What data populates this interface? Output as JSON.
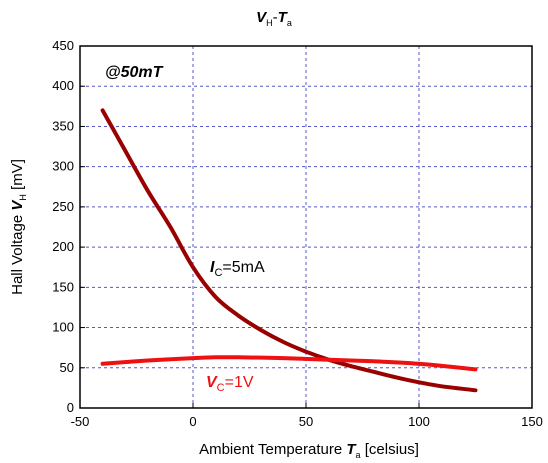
{
  "chart_data": {
    "type": "line",
    "title": {
      "main": "V",
      "sub": "H",
      "sep": "-",
      "main2": "T",
      "sub2": "a"
    },
    "xlabel": {
      "prefix": "Ambient Temperature ",
      "sym": "T",
      "sub": "a",
      "suffix": " [celsius]"
    },
    "ylabel": {
      "prefix": "Hall Voltage ",
      "sym": "V",
      "sub": "H",
      "suffix": " [mV]"
    },
    "xlim": [
      -50,
      150
    ],
    "ylim": [
      0,
      450
    ],
    "xticks": [
      -50,
      0,
      50,
      100,
      150
    ],
    "yticks": [
      0,
      50,
      100,
      150,
      200,
      250,
      300,
      350,
      400,
      450
    ],
    "grid": true,
    "annotations": {
      "field": "@50mT",
      "ic": {
        "sym": "I",
        "sub": "C",
        "rest": "=5mA"
      },
      "vc": {
        "sym": "V",
        "sub": "C",
        "rest": "=1V"
      }
    },
    "series": [
      {
        "color": "#990000",
        "x": [
          -40,
          -30,
          -20,
          -10,
          0,
          10,
          20,
          30,
          40,
          50,
          60,
          70,
          80,
          90,
          100,
          110,
          125
        ],
        "y": [
          370,
          320,
          270,
          225,
          175,
          138,
          115,
          97,
          82,
          70,
          60,
          52,
          45,
          38,
          32,
          27,
          22
        ]
      },
      {
        "color": "#ee1111",
        "x": [
          -40,
          -20,
          0,
          10,
          20,
          40,
          60,
          80,
          100,
          125
        ],
        "y": [
          55,
          59,
          62,
          63,
          63,
          62,
          60,
          58,
          55,
          48
        ]
      }
    ]
  }
}
